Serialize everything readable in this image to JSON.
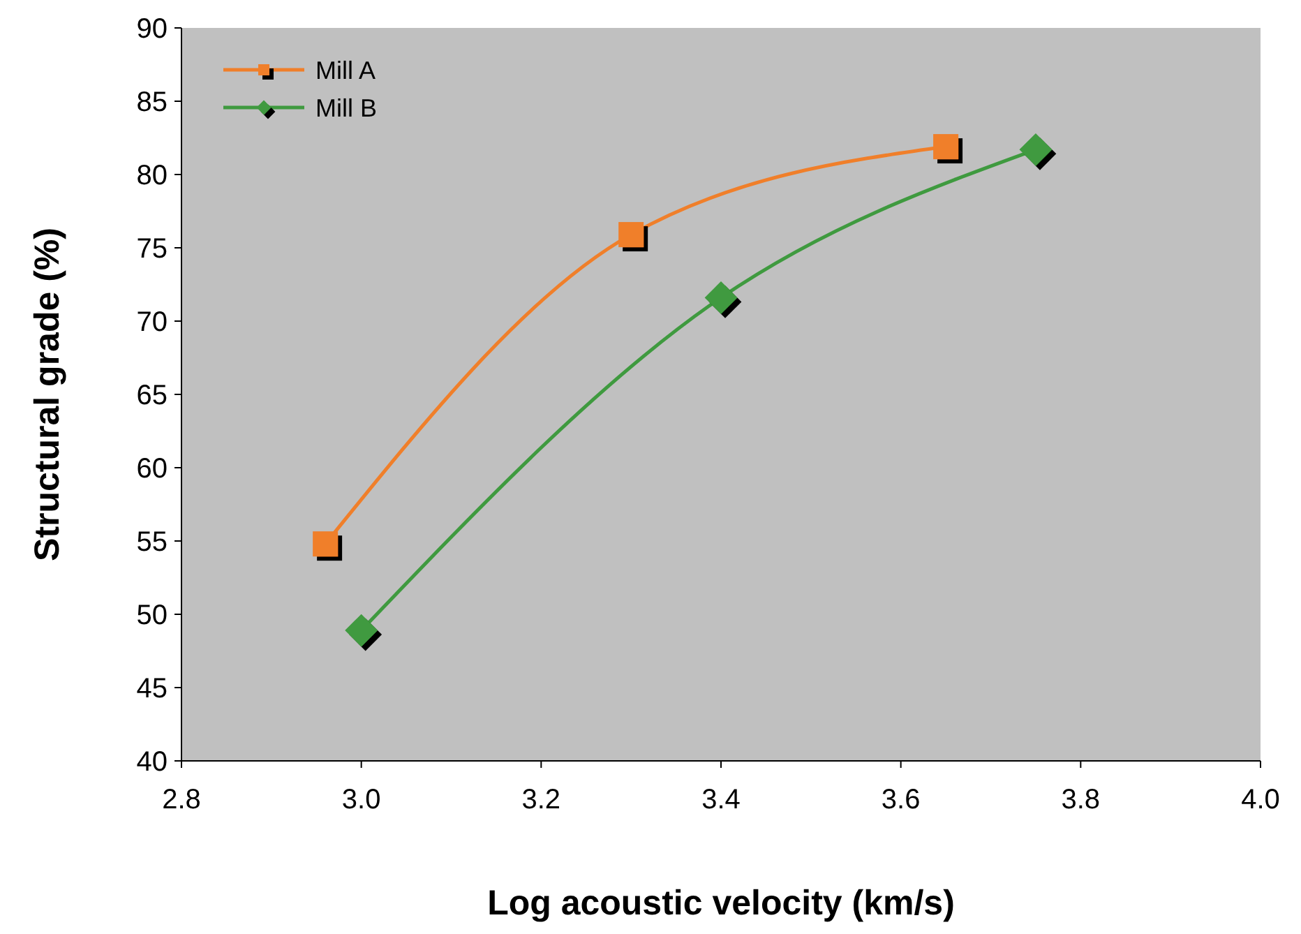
{
  "chart_data": {
    "type": "line",
    "xlabel": "Log acoustic velocity (km/s)",
    "ylabel": "Structural grade (%)",
    "xlim": [
      2.8,
      4.0
    ],
    "xticks": [
      {
        "value": 2.8,
        "label": "2.8"
      },
      {
        "value": 3.0,
        "label": "3.0"
      },
      {
        "value": 3.2,
        "label": "3.2"
      },
      {
        "value": 3.4,
        "label": "3.4"
      },
      {
        "value": 3.6,
        "label": "3.6"
      },
      {
        "value": 3.8,
        "label": "3.8"
      },
      {
        "value": 4.0,
        "label": "4.0"
      }
    ],
    "ylim": [
      40,
      90
    ],
    "yticks": [
      40,
      45,
      50,
      55,
      60,
      65,
      70,
      75,
      80,
      85,
      90
    ],
    "grid": false,
    "legend": "top left",
    "series": [
      {
        "name": "Mill A",
        "color": "#f07f2a",
        "marker": "square",
        "x": [
          2.96,
          3.3,
          3.65
        ],
        "values": [
          54.8,
          75.9,
          81.9
        ]
      },
      {
        "name": "Mill B",
        "color": "#3f9a3f",
        "marker": "diamond",
        "x": [
          3.0,
          3.4,
          3.75
        ],
        "values": [
          48.9,
          71.6,
          81.7
        ]
      }
    ]
  }
}
